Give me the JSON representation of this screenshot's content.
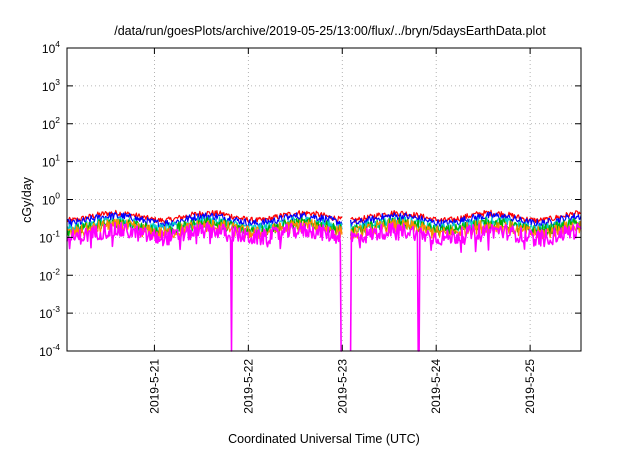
{
  "chart_data": {
    "type": "line",
    "title": "/data/run/goesPlots/archive/2019-05-25/13:00/flux/../bryn/5daysEarthData.plot",
    "xlabel": "Coordinated Universal Time (UTC)",
    "ylabel": "cGy/day",
    "x_range": [
      "2019-05-20T01:40",
      "2019-05-25T13:00"
    ],
    "x_ticks": [
      "2019-5-21",
      "2019-5-22",
      "2019-5-23",
      "2019-5-24",
      "2019-5-25"
    ],
    "y_scale": "log",
    "y_range": [
      0.0001,
      10000
    ],
    "y_ticks": [
      {
        "base": "10",
        "exp": "-4",
        "value": 0.0001
      },
      {
        "base": "10",
        "exp": "-3",
        "value": 0.001
      },
      {
        "base": "10",
        "exp": "-2",
        "value": 0.01
      },
      {
        "base": "10",
        "exp": "-1",
        "value": 0.1
      },
      {
        "base": "10",
        "exp": "0",
        "value": 1
      },
      {
        "base": "10",
        "exp": "1",
        "value": 10
      },
      {
        "base": "10",
        "exp": "2",
        "value": 100
      },
      {
        "base": "10",
        "exp": "3",
        "value": 1000
      },
      {
        "base": "10",
        "exp": "4",
        "value": 10000
      }
    ],
    "grid": true,
    "data_gaps": [
      [
        "2019-05-23T00:00",
        "2019-05-23T02:00"
      ]
    ],
    "series": [
      {
        "color": "#ff0000",
        "base": 0.36,
        "dips": []
      },
      {
        "color": "#0000ff",
        "base": 0.3,
        "dips": []
      },
      {
        "color": "#00cccc",
        "base": 0.22,
        "dips": []
      },
      {
        "color": "#00b000",
        "base": 0.19,
        "dips": []
      },
      {
        "color": "#ff8c00",
        "base": 0.165,
        "dips": []
      },
      {
        "color": "#ff00ff",
        "base": 0.125,
        "dips": [
          "2019-05-21T19:40",
          "2019-05-22T23:50",
          "2019-05-23T02:10",
          "2019-05-23T19:20",
          "2019-05-23T19:35"
        ]
      }
    ]
  }
}
